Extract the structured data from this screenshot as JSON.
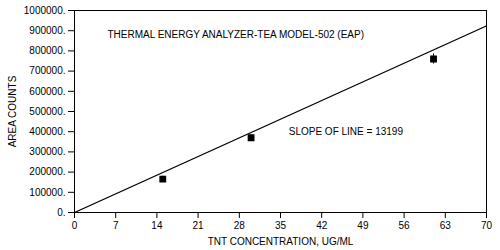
{
  "chart_data": {
    "type": "scatter",
    "xlabel": "TNT CONCENTRATION, UG/ML",
    "ylabel": "AREA COUNTS",
    "annotations": [
      "THERMAL ENERGY ANALYZER-TEA MODEL-502 (EAP)",
      "SLOPE OF LINE = 13199"
    ],
    "series": [
      {
        "type": "line",
        "color": "#000000",
        "x": [
          0,
          70
        ],
        "values": [
          0,
          923930
        ]
      },
      {
        "type": "scatter",
        "color": "#000000",
        "marker": "square",
        "x": [
          15.0,
          30.0,
          61.0
        ],
        "values": [
          165000,
          370000,
          760000
        ],
        "yerr": [
          15000,
          15000,
          25000
        ]
      }
    ],
    "xlim": [
      0,
      70
    ],
    "ylim": [
      0,
      1000000
    ],
    "xticks": [
      0,
      7,
      14,
      21,
      28,
      35,
      42,
      49,
      56,
      63,
      70
    ],
    "yticks": [
      {
        "value": 0,
        "label": "0."
      },
      {
        "value": 100000,
        "label": "100000."
      },
      {
        "value": 200000,
        "label": "200000."
      },
      {
        "value": 300000,
        "label": "300000."
      },
      {
        "value": 400000,
        "label": "400000."
      },
      {
        "value": 500000,
        "label": "500000."
      },
      {
        "value": 600000,
        "label": "600000."
      },
      {
        "value": 700000,
        "label": "700000."
      },
      {
        "value": 800000,
        "label": "800000."
      },
      {
        "value": 900000,
        "label": "900000."
      },
      {
        "value": 1000000,
        "label": "1000000."
      }
    ],
    "grid": false
  }
}
